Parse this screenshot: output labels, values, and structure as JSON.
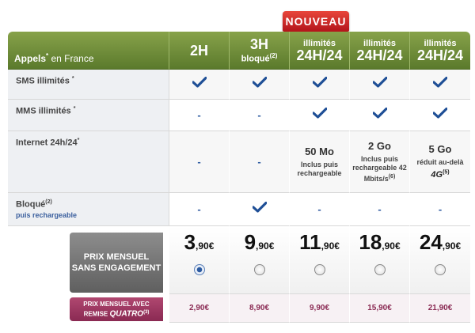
{
  "badge": "NOUVEAU",
  "header": {
    "first_label": "Appels",
    "first_sup": "*",
    "first_suffix": " en France",
    "columns": [
      {
        "main": "2H",
        "sub": "",
        "sup": ""
      },
      {
        "main": "3H",
        "sub": "bloqué",
        "sup": "(2)"
      },
      {
        "main": "24H/24",
        "sub": "illimités",
        "sup": ""
      },
      {
        "main": "24H/24",
        "sub": "illimités",
        "sup": ""
      },
      {
        "main": "24H/24",
        "sub": "illimités",
        "sup": ""
      }
    ]
  },
  "rows": {
    "sms": {
      "label": "SMS illimités ",
      "sup": "*"
    },
    "mms": {
      "label": "MMS illimités ",
      "sup": "*"
    },
    "internet": {
      "label": "Internet 24h/24",
      "sup": "*",
      "values": [
        "-",
        "-",
        "50 Mo",
        "2 Go",
        "5 Go"
      ],
      "notes": [
        "",
        "",
        "Inclus puis rechargeable",
        "Inclus puis rechargeable 42 Mbits/s",
        "réduit au-delà"
      ],
      "note_sups": [
        "",
        "",
        "",
        "(6)",
        ""
      ],
      "fourg": "4G",
      "fourg_sup": "(5)"
    },
    "bloque": {
      "label": "Bloqué",
      "sup": "(2)",
      "sub": "puis rechargeable"
    },
    "dash": "-"
  },
  "prices": {
    "label_line1": "PRIX MENSUEL",
    "label_line2": "SANS ENGAGEMENT",
    "items": [
      {
        "int": "3",
        "dec": ",90€",
        "selected": true
      },
      {
        "int": "9",
        "dec": ",90€",
        "selected": false
      },
      {
        "int": "11",
        "dec": ",90€",
        "selected": false
      },
      {
        "int": "18",
        "dec": ",90€",
        "selected": false
      },
      {
        "int": "24",
        "dec": ",90€",
        "selected": false
      }
    ]
  },
  "remise": {
    "label_line1": "PRIX MENSUEL AVEC",
    "label_line2": "REMISE ",
    "label_quatro": "QUATRO",
    "label_sup": "(3)",
    "values": [
      "2,90€",
      "8,90€",
      "9,90€",
      "15,90€",
      "21,90€"
    ]
  },
  "colors": {
    "header_green": "#6b8a35",
    "check_blue": "#1f4f96",
    "badge_red": "#c8222b",
    "remise_purple": "#8a2a53"
  }
}
